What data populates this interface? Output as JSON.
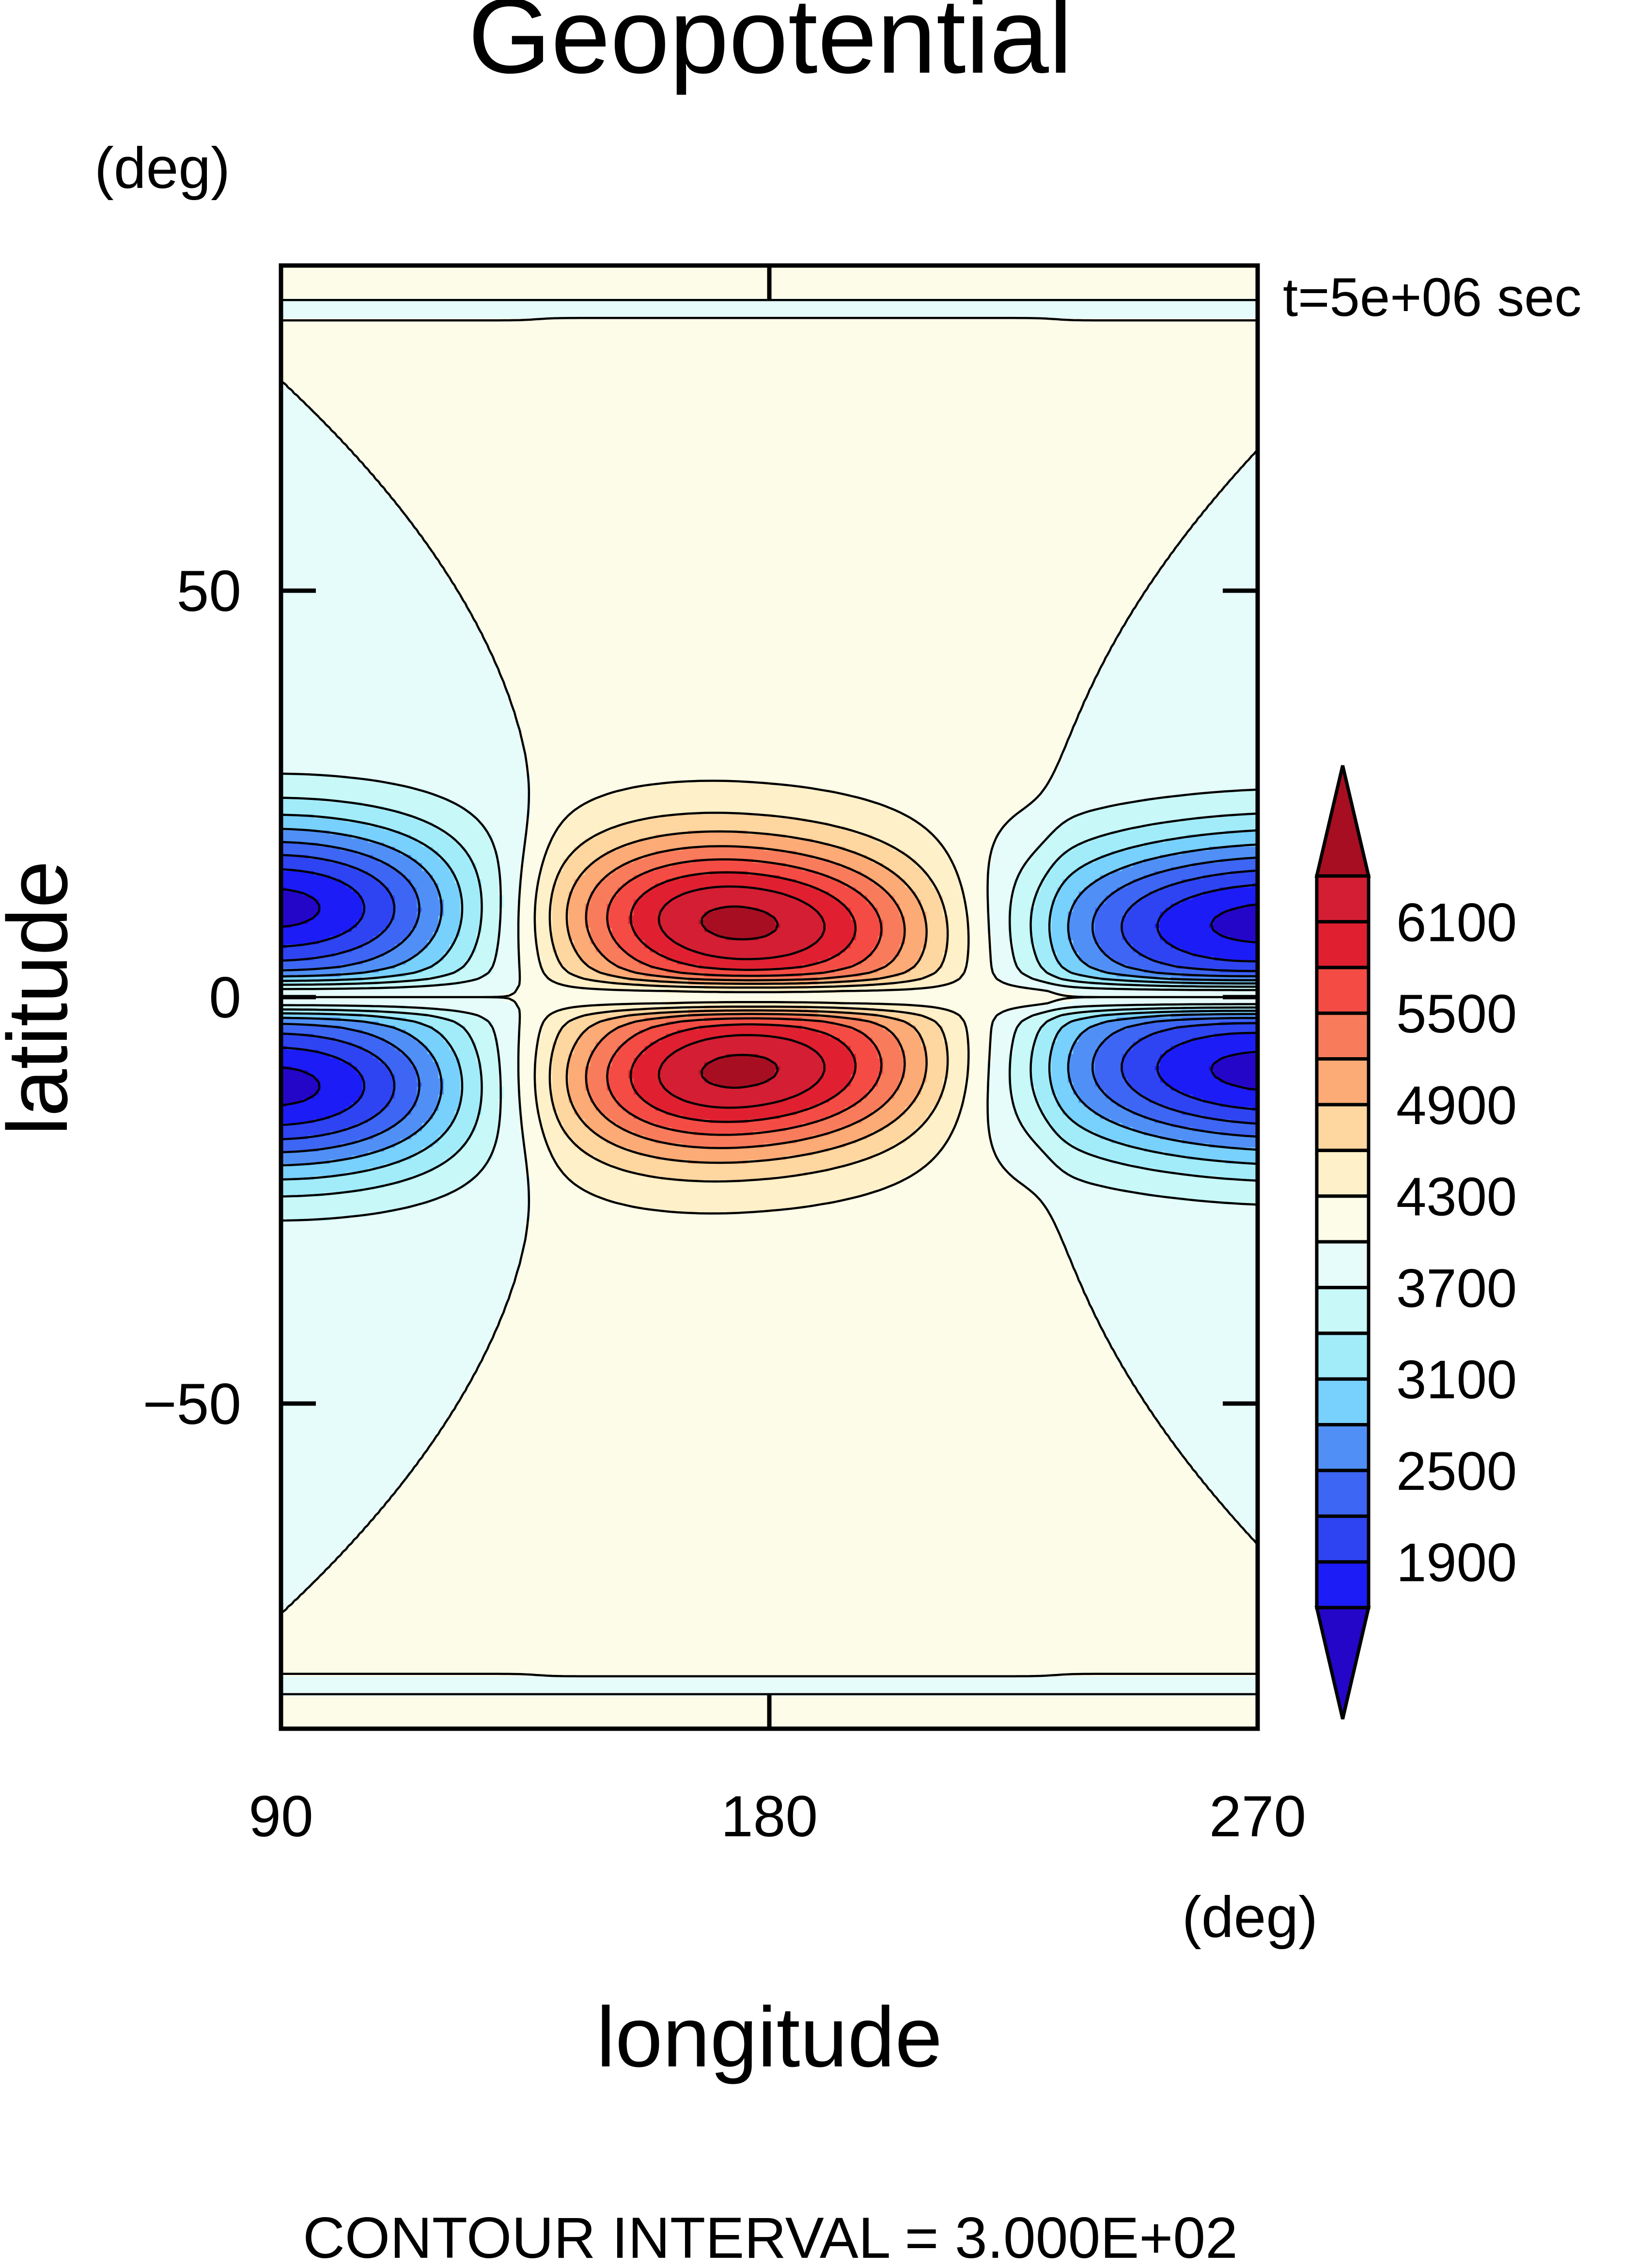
{
  "chart_data": {
    "type": "heatmap",
    "title": "Geopotential",
    "xlabel": "longitude",
    "ylabel": "latitude",
    "x_unit": "(deg)",
    "y_unit": "(deg)",
    "time_label": "t=5e+06 sec",
    "footer": "CONTOUR INTERVAL = 3.000E+02",
    "xlim": [
      90,
      270
    ],
    "ylim": [
      -90,
      90
    ],
    "x_ticks": [
      90,
      180,
      270
    ],
    "y_ticks": [
      50,
      0,
      -50
    ],
    "y_tick_labels": [
      "50",
      "0",
      "−50"
    ],
    "contour_interval": 300,
    "colorbar": {
      "levels": [
        1600,
        1900,
        2200,
        2500,
        2800,
        3100,
        3400,
        3700,
        4000,
        4300,
        4600,
        4900,
        5200,
        5500,
        5800,
        6100,
        6400
      ],
      "tick_values": [
        1900,
        2500,
        3100,
        3700,
        4300,
        4900,
        5500,
        6100
      ],
      "tick_labels": [
        "1900",
        "2500",
        "3100",
        "3700",
        "4300",
        "4900",
        "5500",
        "6100"
      ],
      "colors": [
        "#2406c8",
        "#1c1cf6",
        "#2e44f2",
        "#3e66f4",
        "#5090f6",
        "#78d0fc",
        "#a2ecfa",
        "#c8f8f8",
        "#e6fcfa",
        "#fcfce8",
        "#fef0c8",
        "#fed6a0",
        "#fcaa76",
        "#f87c5c",
        "#f44c44",
        "#e02030",
        "#d41e34",
        "#a80e22"
      ]
    },
    "field": {
      "background": 4000,
      "features": [
        {
          "name": "high north",
          "lon": 175,
          "lat": 9,
          "peak": 6550
        },
        {
          "name": "high south",
          "lon": 175,
          "lat": -9,
          "peak": 6550
        },
        {
          "name": "low north-west",
          "lon": 90,
          "lat": 11,
          "peak": 1450
        },
        {
          "name": "low south-west",
          "lon": 90,
          "lat": -11,
          "peak": 1450
        },
        {
          "name": "low north-east",
          "lon": 270,
          "lat": 9,
          "peak": 1450
        },
        {
          "name": "low south-east",
          "lon": 270,
          "lat": -9,
          "peak": 1450
        }
      ]
    }
  }
}
